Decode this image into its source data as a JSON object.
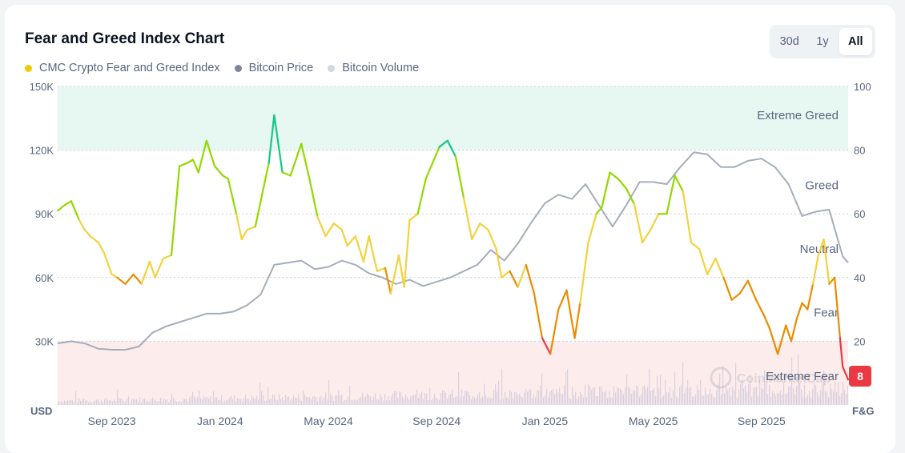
{
  "title": "Fear and Greed Index Chart",
  "range": {
    "options": [
      "30d",
      "1y",
      "All"
    ],
    "selected": "All"
  },
  "legend": [
    {
      "label": "CMC Crypto Fear and Greed Index",
      "color": "#f3c80a"
    },
    {
      "label": "Bitcoin Price",
      "color": "#7d8698"
    },
    {
      "label": "Bitcoin Volume",
      "color": "#cfd6e4"
    }
  ],
  "colors": {
    "extreme_greed": "#16c784",
    "greed": "#93d900",
    "neutral": "#f3d23e",
    "fear": "#ea8c00",
    "extreme_fear": "#ea3943",
    "price": "#a6adbb",
    "volume": "#d9d2de",
    "greed_band": "#e6f8f1",
    "fear_band": "#fdecec",
    "current_badge": "#ea3943"
  },
  "watermark": "CoinMarketCap",
  "chart_data": {
    "type": "line",
    "title": "Fear and Greed Index Chart",
    "x_ticks": [
      "Sep 2023",
      "Jan 2024",
      "May 2024",
      "Sep 2024",
      "Jan 2025",
      "May 2025",
      "Sep 2025"
    ],
    "x_range": [
      0,
      29.2
    ],
    "x_tick_positions": [
      2,
      6,
      10,
      14,
      18,
      22,
      26
    ],
    "left_axis": {
      "unit": "USD",
      "ticks": [
        "30K",
        "60K",
        "90K",
        "120K",
        "150K"
      ],
      "tick_values": [
        30000,
        60000,
        90000,
        120000,
        150000
      ],
      "range": [
        0,
        150000
      ]
    },
    "right_axis": {
      "unit": "F&G",
      "ticks": [
        "20",
        "40",
        "60",
        "80",
        "100"
      ],
      "tick_values": [
        20,
        40,
        60,
        80,
        100
      ],
      "range": [
        0,
        100
      ]
    },
    "zones": [
      {
        "label": "Extreme Greed",
        "at": 91
      },
      {
        "label": "Greed",
        "at": 69
      },
      {
        "label": "Neutral",
        "at": 49
      },
      {
        "label": "Fear",
        "at": 29
      },
      {
        "label": "Extreme Fear",
        "at": 9
      }
    ],
    "bands": {
      "extreme_greed_from": 80,
      "extreme_fear_below": 20
    },
    "current_value": "8",
    "series": [
      {
        "name": "CMC Crypto Fear and Greed Index",
        "axis": "right",
        "x": [
          0,
          0.3,
          0.5,
          0.8,
          1.0,
          1.2,
          1.5,
          1.7,
          2.0,
          2.2,
          2.5,
          2.8,
          3.1,
          3.4,
          3.6,
          3.9,
          4.2,
          4.5,
          4.8,
          5.0,
          5.2,
          5.5,
          5.8,
          6.1,
          6.3,
          6.6,
          6.8,
          7.0,
          7.3,
          7.6,
          7.8,
          8.0,
          8.3,
          8.6,
          8.8,
          9.0,
          9.3,
          9.6,
          9.9,
          10.2,
          10.5,
          10.7,
          11.0,
          11.3,
          11.5,
          11.8,
          12.1,
          12.3,
          12.6,
          12.8,
          13.0,
          13.3,
          13.6,
          13.8,
          14.1,
          14.4,
          14.7,
          15.0,
          15.3,
          15.6,
          15.9,
          16.2,
          16.4,
          16.7,
          17.0,
          17.3,
          17.6,
          17.9,
          18.2,
          18.5,
          18.8,
          19.1,
          19.3,
          19.6,
          19.9,
          20.1,
          20.4,
          20.7,
          21.0,
          21.3,
          21.6,
          21.9,
          22.2,
          22.5,
          22.8,
          23.1,
          23.4,
          23.7,
          24.0,
          24.3,
          24.6,
          24.9,
          25.2,
          25.5,
          25.8,
          26.1,
          26.3,
          26.6,
          26.9,
          27.1,
          27.3,
          27.5,
          27.7,
          27.9,
          28.1,
          28.3,
          28.5,
          28.7,
          28.9,
          29.0,
          29.2
        ],
        "values": [
          61,
          63,
          64,
          58,
          55,
          53,
          51,
          48,
          41,
          40,
          38,
          41,
          38,
          45,
          40,
          46,
          47,
          75,
          76,
          77,
          73,
          83,
          75,
          72,
          71,
          60,
          52,
          55,
          56,
          68,
          76,
          91,
          73,
          72,
          77,
          82,
          71,
          59,
          53,
          57,
          55,
          50,
          53,
          45,
          53,
          42,
          43,
          35,
          47,
          37,
          58,
          60,
          71,
          75,
          81,
          83,
          78,
          65,
          52,
          57,
          55,
          49,
          40,
          42,
          37,
          44,
          35,
          21,
          16,
          30,
          36,
          21,
          32,
          51,
          60,
          62,
          73,
          71,
          68,
          63,
          51,
          55,
          60,
          60,
          72,
          67,
          51,
          49,
          41,
          46,
          40,
          33,
          35,
          39,
          33,
          28,
          24,
          16,
          25,
          20,
          27,
          32,
          30,
          38,
          47,
          52,
          38,
          40,
          21,
          12,
          8
        ]
      },
      {
        "name": "Bitcoin Price",
        "axis": "left",
        "x": [
          0,
          0.5,
          1.0,
          1.5,
          2.0,
          2.5,
          3.0,
          3.5,
          4.0,
          4.5,
          5.0,
          5.5,
          6.0,
          6.5,
          7.0,
          7.5,
          8.0,
          8.5,
          9.0,
          9.5,
          10.0,
          10.5,
          11.0,
          11.5,
          12.0,
          12.5,
          13.0,
          13.5,
          14.0,
          14.5,
          15.0,
          15.5,
          16.0,
          16.5,
          17.0,
          17.5,
          18.0,
          18.5,
          19.0,
          19.5,
          20.0,
          20.5,
          21.0,
          21.5,
          22.0,
          22.5,
          23.0,
          23.5,
          24.0,
          24.5,
          25.0,
          25.5,
          26.0,
          26.5,
          27.0,
          27.5,
          28.0,
          28.5,
          29.0,
          29.2
        ],
        "values": [
          29000,
          30000,
          29000,
          26500,
          26000,
          26000,
          27500,
          34000,
          37000,
          39000,
          41000,
          43000,
          43000,
          44000,
          47000,
          52000,
          66000,
          67000,
          68000,
          64000,
          65000,
          68000,
          66000,
          62000,
          60000,
          57000,
          59000,
          56000,
          58000,
          60000,
          63000,
          66000,
          73000,
          68000,
          76000,
          86000,
          95000,
          99000,
          97000,
          104000,
          94000,
          84000,
          94000,
          105000,
          105000,
          104000,
          112000,
          119000,
          118000,
          112000,
          112000,
          115000,
          116000,
          112000,
          104000,
          89000,
          91000,
          92000,
          70000,
          67000
        ]
      }
    ]
  }
}
